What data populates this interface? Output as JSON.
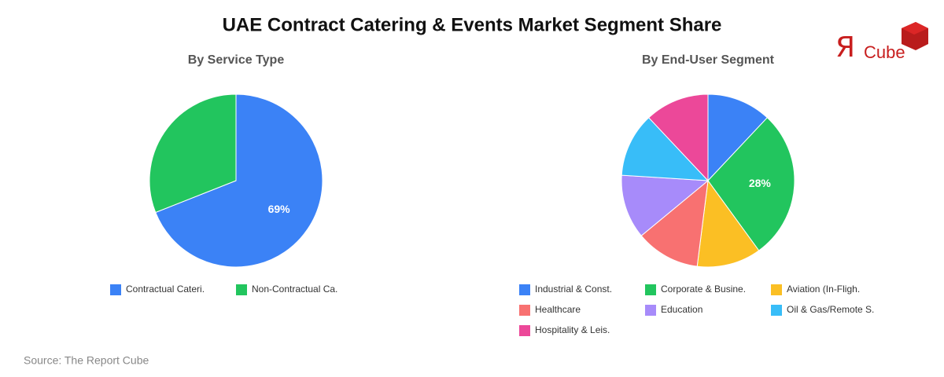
{
  "title": "UAE Contract Catering & Events Market Segment Share",
  "logo": {
    "mark": "Я",
    "text": "Cube"
  },
  "source": "Source: The Report Cube",
  "chart_data": [
    {
      "type": "pie",
      "title": "By Service Type",
      "categories": [
        "Contractual Cateri.",
        "Non-Contractual Ca."
      ],
      "values": [
        69,
        31
      ],
      "value_labels": [
        "69%",
        null
      ],
      "colors": [
        "#3b82f6",
        "#22c55e"
      ]
    },
    {
      "type": "pie",
      "title": "By End-User Segment",
      "categories": [
        "Industrial & Const.",
        "Corporate & Busine.",
        "Aviation (In-Fligh.",
        "Healthcare",
        "Education",
        "Oil & Gas/Remote S.",
        "Hospitality & Leis."
      ],
      "values": [
        12,
        28,
        12,
        12,
        12,
        12,
        12
      ],
      "value_labels": [
        null,
        "28%",
        null,
        null,
        null,
        null,
        null
      ],
      "colors": [
        "#3b82f6",
        "#22c55e",
        "#fbbf24",
        "#f87171",
        "#a78bfa",
        "#38bdf8",
        "#ec4899"
      ]
    }
  ]
}
